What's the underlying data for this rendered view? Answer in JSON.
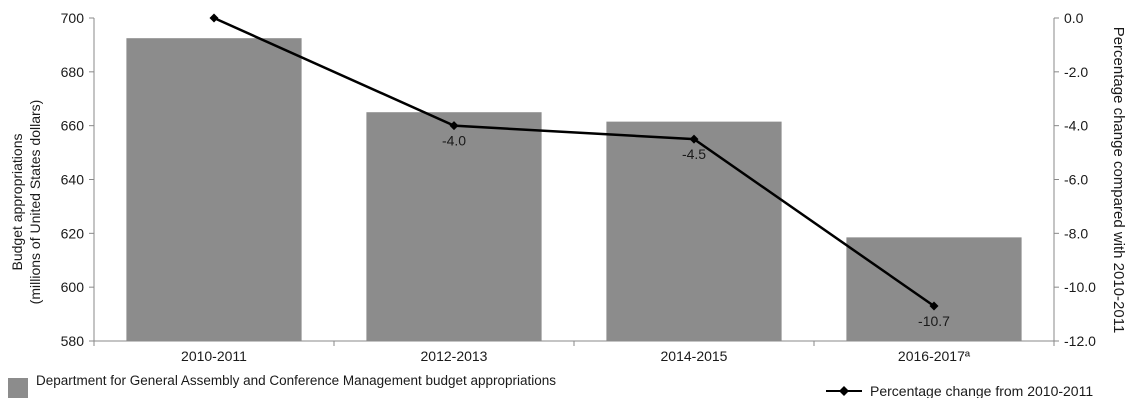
{
  "chart_data": {
    "type": "bar+line",
    "categories": [
      "2010-2011",
      "2012-2013",
      "2014-2015",
      "2016-2017ª"
    ],
    "series": [
      {
        "name": "Department for General Assembly and Conference Management budget appropriations",
        "type": "bar",
        "axis": "left",
        "values": [
          692.5,
          665.0,
          661.5,
          618.5
        ]
      },
      {
        "name": "Percentage change from 2010-2011",
        "type": "line",
        "axis": "right",
        "values": [
          0.0,
          -4.0,
          -4.5,
          -10.7
        ],
        "data_labels": [
          "",
          "-4.0",
          "-4.5",
          "-10.7"
        ]
      }
    ],
    "ylabel": "Budget appropriations\n(millions of United States dollars)",
    "ylim": [
      580,
      700
    ],
    "yticks": [
      "580",
      "600",
      "620",
      "640",
      "660",
      "680",
      "700"
    ],
    "y2label": "Percentage change compared with 2010-2011",
    "y2lim": [
      -12.0,
      0.0
    ],
    "y2ticks": [
      "0.0",
      "-2.0",
      "-4.0",
      "-6.0",
      "-8.0",
      "-10.0",
      "-12.0"
    ],
    "grid": false,
    "legend_placement": "bottom",
    "colors": {
      "bar": "#8c8c8c",
      "line": "#000000",
      "axis": "#888888"
    }
  }
}
